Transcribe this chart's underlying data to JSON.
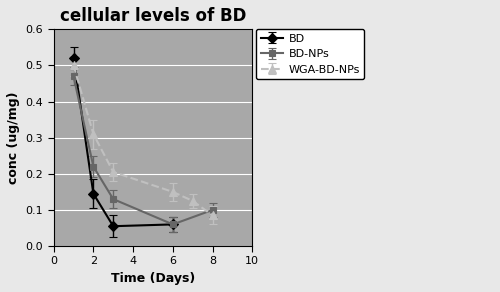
{
  "title": "cellular levels of BD",
  "xlabel": "Time (Days)",
  "ylabel": "conc (ug/mg)",
  "xlim": [
    0,
    10
  ],
  "ylim": [
    0,
    0.6
  ],
  "yticks": [
    0.0,
    0.1,
    0.2,
    0.3,
    0.4,
    0.5,
    0.6
  ],
  "xticks": [
    0,
    2,
    4,
    6,
    8,
    10
  ],
  "plot_bg_color": "#a8a8a8",
  "fig_bg_color": "#e8e8e8",
  "series": [
    {
      "label": "BD",
      "x": [
        1,
        2,
        3,
        6
      ],
      "y": [
        0.52,
        0.145,
        0.055,
        0.06
      ],
      "yerr": [
        0.03,
        0.04,
        0.03,
        0.02
      ],
      "color": "#000000",
      "linestyle": "-",
      "marker": "D",
      "markersize": 5,
      "linewidth": 1.5
    },
    {
      "label": "BD-NPs",
      "x": [
        1,
        2,
        3,
        6,
        8
      ],
      "y": [
        0.47,
        0.22,
        0.13,
        0.06,
        0.1
      ],
      "yerr": [
        0.025,
        0.03,
        0.025,
        0.02,
        0.02
      ],
      "color": "#666666",
      "linestyle": "-",
      "marker": "s",
      "markersize": 5,
      "linewidth": 1.5
    },
    {
      "label": "WGA-BD-NPs",
      "x": [
        1,
        2,
        3,
        6,
        7,
        8
      ],
      "y": [
        0.5,
        0.31,
        0.205,
        0.15,
        0.125,
        0.085
      ],
      "yerr": [
        0.03,
        0.04,
        0.025,
        0.025,
        0.02,
        0.025
      ],
      "color": "#c0c0c0",
      "linestyle": "--",
      "marker": "^",
      "markersize": 6,
      "linewidth": 1.5
    }
  ],
  "title_fontsize": 12,
  "axis_label_fontsize": 9,
  "tick_fontsize": 8,
  "legend_fontsize": 8
}
